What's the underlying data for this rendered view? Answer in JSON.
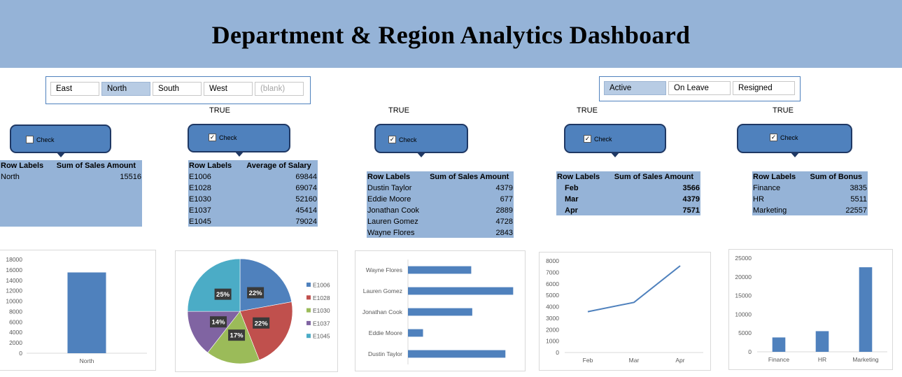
{
  "title": "Department & Region Analytics Dashboard",
  "colors": {
    "header": "#95b3d7",
    "accent": "#4f81bd",
    "pivot_bg": "#95b3d7",
    "slicer_selected": "#b8cce4",
    "pie": [
      "#4f81bd",
      "#c0504d",
      "#9bbb59",
      "#8064a2",
      "#4bacc6"
    ]
  },
  "region_slicer": {
    "items": [
      {
        "label": "East",
        "selected": false
      },
      {
        "label": "North",
        "selected": true
      },
      {
        "label": "South",
        "selected": false
      },
      {
        "label": "West",
        "selected": false
      },
      {
        "label": "(blank)",
        "selected": false
      }
    ]
  },
  "status_slicer": {
    "items": [
      {
        "label": "Active",
        "selected": true
      },
      {
        "label": "On Leave",
        "selected": false
      },
      {
        "label": "Resigned",
        "selected": false
      }
    ]
  },
  "true_labels": [
    "TRUE",
    "TRUE",
    "TRUE",
    "TRUE"
  ],
  "checks": [
    {
      "label": "Check",
      "checked": false
    },
    {
      "label": "Check",
      "checked": true
    },
    {
      "label": "Check",
      "checked": true
    },
    {
      "label": "Check",
      "checked": true
    },
    {
      "label": "Check",
      "checked": true
    }
  ],
  "pivots": [
    {
      "headers": [
        "Row Labels",
        "Sum of Sales Amount"
      ],
      "rows": [
        [
          "North",
          "15516"
        ]
      ]
    },
    {
      "headers": [
        "Row Labels",
        "Average of Salary"
      ],
      "rows": [
        [
          "E1006",
          "69844"
        ],
        [
          "E1028",
          "69074"
        ],
        [
          "E1030",
          "52160"
        ],
        [
          "E1037",
          "45414"
        ],
        [
          "E1045",
          "79024"
        ]
      ]
    },
    {
      "headers": [
        "Row Labels",
        "Sum of Sales Amount"
      ],
      "rows": [
        [
          "Dustin Taylor",
          "4379"
        ],
        [
          "Eddie Moore",
          "677"
        ],
        [
          "Jonathan Cook",
          "2889"
        ],
        [
          "Lauren Gomez",
          "4728"
        ],
        [
          "Wayne Flores",
          "2843"
        ]
      ]
    },
    {
      "headers": [
        "Row Labels",
        "Sum of Sales Amount"
      ],
      "rows": [
        [
          "Feb",
          "3566"
        ],
        [
          "Mar",
          "4379"
        ],
        [
          "Apr",
          "7571"
        ]
      ]
    },
    {
      "headers": [
        "Row Labels",
        "Sum of Bonus"
      ],
      "rows": [
        [
          "Finance",
          "3835"
        ],
        [
          "HR",
          "5511"
        ],
        [
          "Marketing",
          "22557"
        ]
      ]
    }
  ],
  "chart_data": [
    {
      "type": "bar",
      "categories": [
        "North"
      ],
      "values": [
        15516
      ],
      "ylim": [
        0,
        18000
      ],
      "yticks": [
        "0",
        "2000",
        "4000",
        "6000",
        "8000",
        "10000",
        "12000",
        "14000",
        "16000",
        "18000"
      ],
      "grid": false
    },
    {
      "type": "pie",
      "categories": [
        "E1006",
        "E1028",
        "E1030",
        "E1037",
        "E1045"
      ],
      "values": [
        69844,
        69074,
        52160,
        45414,
        79024
      ],
      "data_labels": [
        "22%",
        "22%",
        "17%",
        "14%",
        "25%"
      ],
      "legend": "right"
    },
    {
      "type": "bar",
      "orientation": "horizontal",
      "categories": [
        "Dustin Taylor",
        "Eddie Moore",
        "Jonathan Cook",
        "Lauren Gomez",
        "Wayne Flores"
      ],
      "values": [
        4379,
        677,
        2889,
        4728,
        2843
      ],
      "xlim": [
        0,
        5000
      ]
    },
    {
      "type": "line",
      "categories": [
        "Feb",
        "Mar",
        "Apr"
      ],
      "values": [
        3566,
        4379,
        7571
      ],
      "ylim": [
        0,
        8000
      ],
      "yticks": [
        "0",
        "1000",
        "2000",
        "3000",
        "4000",
        "5000",
        "6000",
        "7000",
        "8000"
      ]
    },
    {
      "type": "bar",
      "categories": [
        "Finance",
        "HR",
        "Marketing"
      ],
      "values": [
        3835,
        5511,
        22557
      ],
      "ylim": [
        0,
        25000
      ],
      "yticks": [
        "0",
        "5000",
        "10000",
        "15000",
        "20000",
        "25000"
      ]
    }
  ]
}
